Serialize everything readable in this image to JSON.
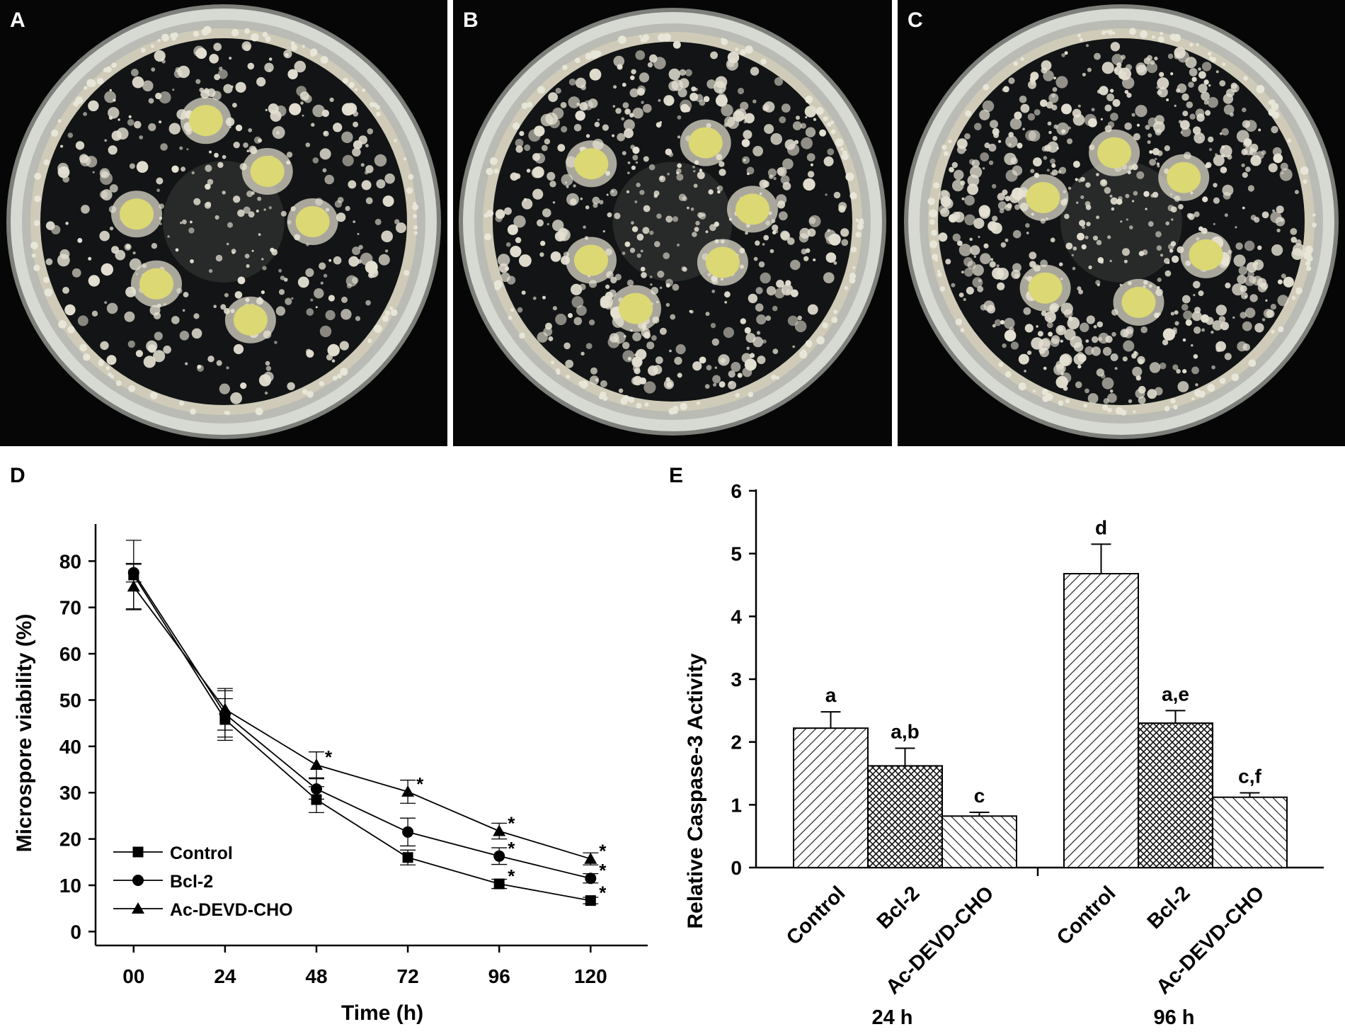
{
  "panels": {
    "a": {
      "letter": "A"
    },
    "b": {
      "letter": "B"
    },
    "c": {
      "letter": "C"
    },
    "d": {
      "letter": "D"
    },
    "e": {
      "letter": "E"
    }
  },
  "colors": {
    "plate_background": "#060606",
    "colony": "#e4e0d2",
    "embryo": "#dcd873",
    "rim": "#d7d9d3"
  },
  "chart_data": [
    {
      "type": "line",
      "title": "",
      "xlabel": "Time (h)",
      "ylabel": "Microspore viability (%)",
      "x": [
        0,
        24,
        48,
        72,
        96,
        120
      ],
      "x_tick_labels": [
        "00",
        "24",
        "48",
        "72",
        "96",
        "120"
      ],
      "xlim": [
        -10,
        135
      ],
      "ylim": [
        -3,
        88
      ],
      "y_ticks": [
        0,
        10,
        20,
        30,
        40,
        50,
        60,
        70,
        80
      ],
      "grid": false,
      "legend": "bottom-left",
      "series": [
        {
          "name": "Control",
          "marker": "square",
          "values": [
            77,
            45.8,
            28.5,
            16,
            10.3,
            6.7
          ],
          "errors": [
            7.5,
            4.5,
            2.8,
            1.6,
            1.0,
            0.7
          ],
          "significance": [
            "",
            "",
            "",
            "",
            "*",
            "*"
          ]
        },
        {
          "name": "Bcl-2",
          "marker": "circle",
          "values": [
            77.5,
            47,
            30.8,
            21.5,
            16.3,
            11.5
          ],
          "errors": [
            2.0,
            5.0,
            2.2,
            3.0,
            1.8,
            1.0
          ],
          "significance": [
            "",
            "",
            "",
            "",
            "*",
            "*"
          ]
        },
        {
          "name": "Ac-DEVD-CHO",
          "marker": "triangle",
          "values": [
            74.5,
            48,
            36,
            30.2,
            21.7,
            15.7
          ],
          "errors": [
            4.8,
            4.5,
            2.8,
            2.5,
            1.7,
            1.3
          ],
          "significance": [
            "",
            "",
            "*",
            "*",
            "*",
            "*"
          ]
        }
      ]
    },
    {
      "type": "bar",
      "title": "",
      "xlabel": "",
      "ylabel": "Relative Caspase-3 Activity",
      "ylim": [
        0,
        6
      ],
      "y_ticks": [
        0,
        1,
        2,
        3,
        4,
        5,
        6
      ],
      "grid": false,
      "groups": [
        {
          "label": "24 h",
          "bars": [
            {
              "category": "Control",
              "value": 2.22,
              "error": 0.26,
              "letters": "a",
              "pattern": "diagonal"
            },
            {
              "category": "Bcl-2",
              "value": 1.62,
              "error": 0.28,
              "letters": "a,b",
              "pattern": "crosshatch"
            },
            {
              "category": "Ac-DEVD-CHO",
              "value": 0.82,
              "error": 0.06,
              "letters": "c",
              "pattern": "backdiagonal"
            }
          ]
        },
        {
          "label": "96 h",
          "bars": [
            {
              "category": "Control",
              "value": 4.68,
              "error": 0.47,
              "letters": "d",
              "pattern": "diagonal"
            },
            {
              "category": "Bcl-2",
              "value": 2.3,
              "error": 0.2,
              "letters": "a,e",
              "pattern": "crosshatch"
            },
            {
              "category": "Ac-DEVD-CHO",
              "value": 1.12,
              "error": 0.07,
              "letters": "c,f",
              "pattern": "backdiagonal"
            }
          ]
        }
      ]
    }
  ]
}
